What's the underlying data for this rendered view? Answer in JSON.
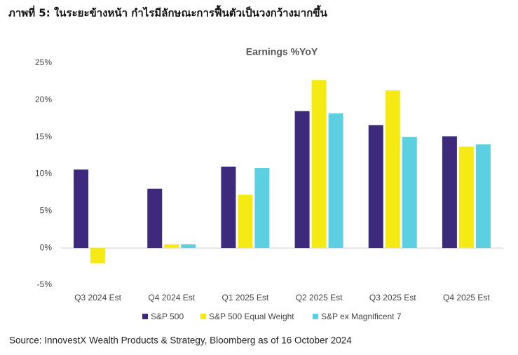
{
  "chart_data": {
    "type": "bar",
    "title": "ภาพที่ 5: ในระยะข้างหน้า กำไรมีลักษณะการฟื้นตัวเป็นวงกว้างมากขึ้น",
    "subtitle": "Earnings %YoY",
    "source": "Source: InnovestX Wealth Products & Strategy, Bloomberg as of 16 October 2024",
    "categories": [
      "Q3 2024 Est",
      "Q4 2024 Est",
      "Q1 2025 Est",
      "Q2 2025 Est",
      "Q3 2025 Est",
      "Q4 2025 Est"
    ],
    "series": [
      {
        "name": "S&P 500",
        "color": "#3d2a7d",
        "values": [
          10.6,
          8.0,
          11.0,
          18.5,
          16.6,
          15.1
        ]
      },
      {
        "name": "S&P 500 Equal Weight",
        "color": "#f5ea14",
        "values": [
          -2.1,
          0.5,
          7.2,
          22.7,
          21.3,
          13.7
        ]
      },
      {
        "name": "S&P ex Magnificent 7",
        "color": "#5ccfe0",
        "values": [
          null,
          0.5,
          10.8,
          18.2,
          15.0,
          14.0
        ]
      }
    ],
    "ylim": [
      -5,
      25
    ],
    "yticks": [
      {
        "value": -5,
        "label": "-5%"
      },
      {
        "value": 0,
        "label": "0%"
      },
      {
        "value": 5,
        "label": "5%"
      },
      {
        "value": 10,
        "label": "10%"
      },
      {
        "value": 15,
        "label": "15%"
      },
      {
        "value": 20,
        "label": "20%"
      },
      {
        "value": 25,
        "label": "25%"
      }
    ],
    "legend": "bottom"
  }
}
